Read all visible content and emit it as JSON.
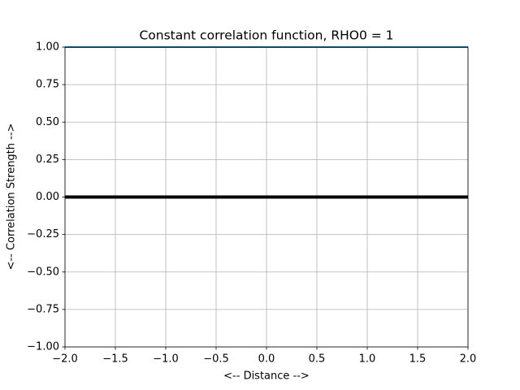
{
  "chart_data": {
    "type": "line",
    "title": "Constant correlation function, RHO0 = 1",
    "xlabel": "<-- Distance -->",
    "ylabel": "<-- Correlation Strength -->",
    "x": [
      -2,
      2
    ],
    "values": [
      1,
      1
    ],
    "color": "#1f77b4",
    "hlines": [
      0
    ],
    "hline_color": "#000000",
    "xlim": [
      -2,
      2
    ],
    "ylim": [
      -1,
      1
    ],
    "xticks": [
      {
        "value": -2,
        "label": "−2.0"
      },
      {
        "value": -1.5,
        "label": "−1.5"
      },
      {
        "value": -1,
        "label": "−1.0"
      },
      {
        "value": -0.5,
        "label": "−0.5"
      },
      {
        "value": 0,
        "label": "0.0"
      },
      {
        "value": 0.5,
        "label": "0.5"
      },
      {
        "value": 1,
        "label": "1.0"
      },
      {
        "value": 1.5,
        "label": "1.5"
      },
      {
        "value": 2,
        "label": "2.0"
      }
    ],
    "yticks": [
      {
        "value": -1,
        "label": "−1.00"
      },
      {
        "value": -0.75,
        "label": "−0.75"
      },
      {
        "value": -0.5,
        "label": "−0.50"
      },
      {
        "value": -0.25,
        "label": "−0.25"
      },
      {
        "value": 0,
        "label": "0.00"
      },
      {
        "value": 0.25,
        "label": "0.25"
      },
      {
        "value": 0.5,
        "label": "0.50"
      },
      {
        "value": 0.75,
        "label": "0.75"
      },
      {
        "value": 1,
        "label": "1.00"
      }
    ],
    "grid": true
  }
}
